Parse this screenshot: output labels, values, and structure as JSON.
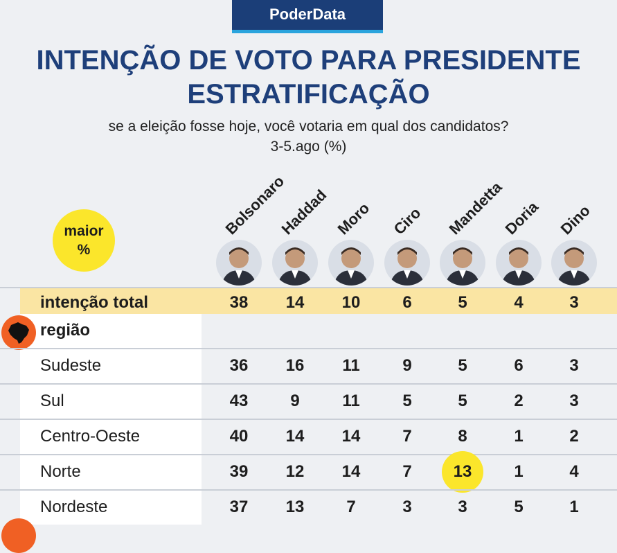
{
  "brand": "PoderData",
  "title_line1": "INTENÇÃO DE VOTO PARA PRESIDENTE",
  "title_line2": "ESTRATIFICAÇÃO",
  "subtitle_line1": "se a eleição fosse hoje, você votaria em qual dos candidatos?",
  "subtitle_line2": "3-5.ago (%)",
  "badge": {
    "line1": "maior",
    "line2": "%"
  },
  "colors": {
    "brand_bg": "#1b3e78",
    "brand_line": "#2aa4dd",
    "title": "#1e3f7a",
    "highlight": "#fbe62b",
    "total_band": "#fae5a3",
    "region_icon": "#f06024"
  },
  "candidates": [
    "Bolsonaro",
    "Haddad",
    "Moro",
    "Ciro",
    "Mandetta",
    "Doria",
    "Dino"
  ],
  "total": {
    "label": "intenção total",
    "values": [
      "38",
      "14",
      "10",
      "6",
      "5",
      "4",
      "3"
    ]
  },
  "section": {
    "label": "região",
    "icon": "brazil-map-icon"
  },
  "chart_data": {
    "type": "table",
    "title": "INTENÇÃO DE VOTO PARA PRESIDENTE ESTRATIFICAÇÃO",
    "columns": [
      "Bolsonaro",
      "Haddad",
      "Moro",
      "Ciro",
      "Mandetta",
      "Doria",
      "Dino"
    ],
    "rows": [
      {
        "label": "Sudeste",
        "values": [
          "36",
          "16",
          "11",
          "9",
          "5",
          "6",
          "3"
        ]
      },
      {
        "label": "Sul",
        "values": [
          "43",
          "9",
          "11",
          "5",
          "5",
          "2",
          "3"
        ]
      },
      {
        "label": "Centro-Oeste",
        "values": [
          "40",
          "14",
          "14",
          "7",
          "8",
          "1",
          "2"
        ]
      },
      {
        "label": "Norte",
        "values": [
          "39",
          "12",
          "14",
          "7",
          "13",
          "1",
          "4"
        ]
      },
      {
        "label": "Nordeste",
        "values": [
          "37",
          "13",
          "7",
          "3",
          "3",
          "5",
          "1"
        ]
      }
    ],
    "highlighted": [
      {
        "row": "Norte",
        "column": "Mandetta"
      }
    ]
  }
}
